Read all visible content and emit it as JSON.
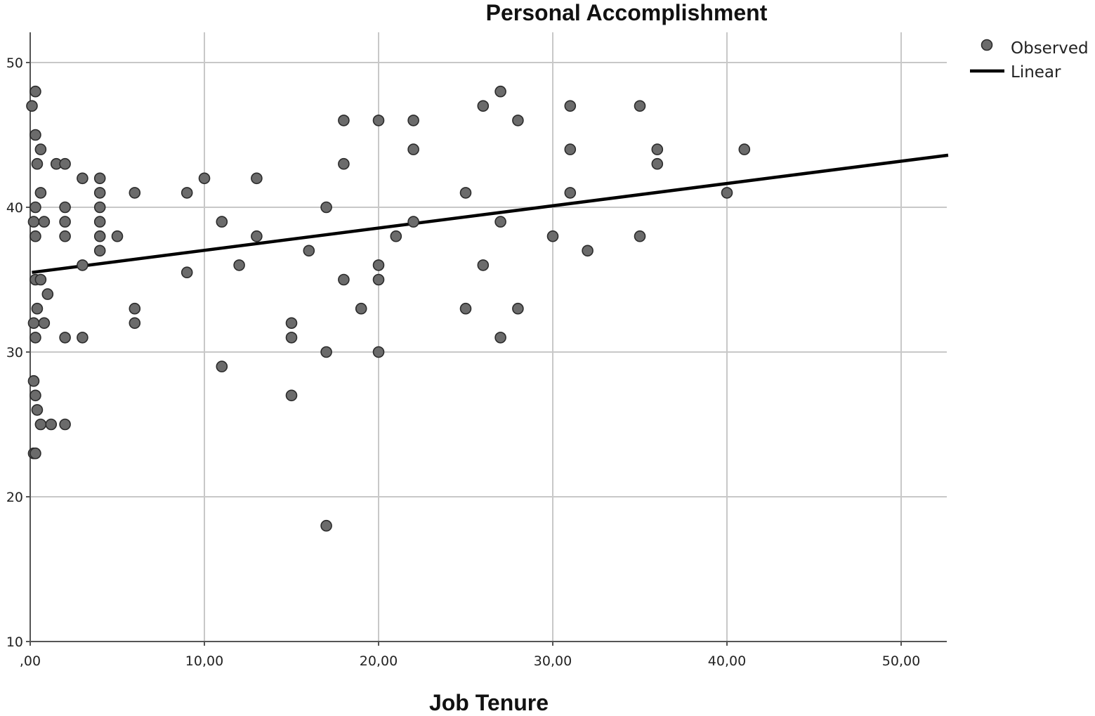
{
  "chart_data": {
    "type": "scatter",
    "title": "Personal Accomplishment",
    "xlabel": "Job Tenure",
    "ylabel": "",
    "xlim": [
      0,
      52.7
    ],
    "ylim": [
      10,
      52
    ],
    "x_ticks": [
      0,
      10,
      20,
      30,
      40,
      50
    ],
    "x_tick_labels": [
      ",00",
      "10,00",
      "20,00",
      "30,00",
      "40,00",
      "50,00"
    ],
    "y_ticks": [
      10,
      20,
      30,
      40,
      50
    ],
    "y_tick_labels": [
      "10",
      "20",
      "30",
      "40",
      "50"
    ],
    "grid": true,
    "legend_position": "top-right",
    "colors": {
      "marker_fill": "#6b6b6b",
      "marker_stroke": "#2b2b2b",
      "line": "#000000",
      "grid": "#c8c8c8",
      "axis": "#555555"
    },
    "series": [
      {
        "name": "Observed",
        "kind": "points",
        "points": [
          [
            0.1,
            47
          ],
          [
            0.3,
            48
          ],
          [
            0.2,
            39
          ],
          [
            0.3,
            45
          ],
          [
            0.6,
            44
          ],
          [
            0.4,
            43
          ],
          [
            0.6,
            41
          ],
          [
            0.3,
            40
          ],
          [
            0.8,
            39
          ],
          [
            0.3,
            38
          ],
          [
            0.3,
            35
          ],
          [
            0.6,
            35
          ],
          [
            1.0,
            34
          ],
          [
            0.4,
            33
          ],
          [
            0.2,
            32
          ],
          [
            0.8,
            32
          ],
          [
            0.3,
            31
          ],
          [
            0.2,
            28
          ],
          [
            0.3,
            27
          ],
          [
            0.4,
            26
          ],
          [
            0.6,
            25
          ],
          [
            1.2,
            25
          ],
          [
            2.0,
            25
          ],
          [
            0.2,
            23
          ],
          [
            0.3,
            23
          ],
          [
            1.5,
            43
          ],
          [
            2.0,
            43
          ],
          [
            2.0,
            40
          ],
          [
            2.0,
            39
          ],
          [
            2.0,
            38
          ],
          [
            2.0,
            31
          ],
          [
            3.0,
            42
          ],
          [
            3.0,
            36
          ],
          [
            3.0,
            31
          ],
          [
            4.0,
            42
          ],
          [
            4.0,
            41
          ],
          [
            4.0,
            40
          ],
          [
            4.0,
            39
          ],
          [
            4.0,
            38
          ],
          [
            4.0,
            37
          ],
          [
            5.0,
            38
          ],
          [
            6.0,
            41
          ],
          [
            6.0,
            33
          ],
          [
            6.0,
            32
          ],
          [
            9.0,
            41
          ],
          [
            9.0,
            35.5
          ],
          [
            10.0,
            42
          ],
          [
            11.0,
            39
          ],
          [
            11.0,
            29
          ],
          [
            12.0,
            36
          ],
          [
            13.0,
            42
          ],
          [
            13.0,
            38
          ],
          [
            15.0,
            32
          ],
          [
            15.0,
            31
          ],
          [
            15.0,
            27
          ],
          [
            16.0,
            37
          ],
          [
            17.0,
            40
          ],
          [
            17.0,
            30
          ],
          [
            17.0,
            18
          ],
          [
            18.0,
            46
          ],
          [
            18.0,
            43
          ],
          [
            18.0,
            35
          ],
          [
            19.0,
            33
          ],
          [
            20.0,
            46
          ],
          [
            20.0,
            36
          ],
          [
            20.0,
            35
          ],
          [
            20.0,
            30
          ],
          [
            21.0,
            38
          ],
          [
            22.0,
            46
          ],
          [
            22.0,
            44
          ],
          [
            22.0,
            39
          ],
          [
            25.0,
            41
          ],
          [
            25.0,
            33
          ],
          [
            26.0,
            47
          ],
          [
            26.0,
            36
          ],
          [
            27.0,
            48
          ],
          [
            27.0,
            39
          ],
          [
            27.0,
            31
          ],
          [
            28.0,
            46
          ],
          [
            28.0,
            33
          ],
          [
            30.0,
            38
          ],
          [
            31.0,
            47
          ],
          [
            31.0,
            44
          ],
          [
            31.0,
            41
          ],
          [
            32.0,
            37
          ],
          [
            35.0,
            47
          ],
          [
            35.0,
            38
          ],
          [
            36.0,
            44
          ],
          [
            36.0,
            43
          ],
          [
            40.0,
            41
          ],
          [
            41.0,
            44
          ]
        ]
      },
      {
        "name": "Linear",
        "kind": "line",
        "points": [
          [
            0.1,
            35.5
          ],
          [
            52.7,
            43.6
          ]
        ]
      }
    ]
  }
}
